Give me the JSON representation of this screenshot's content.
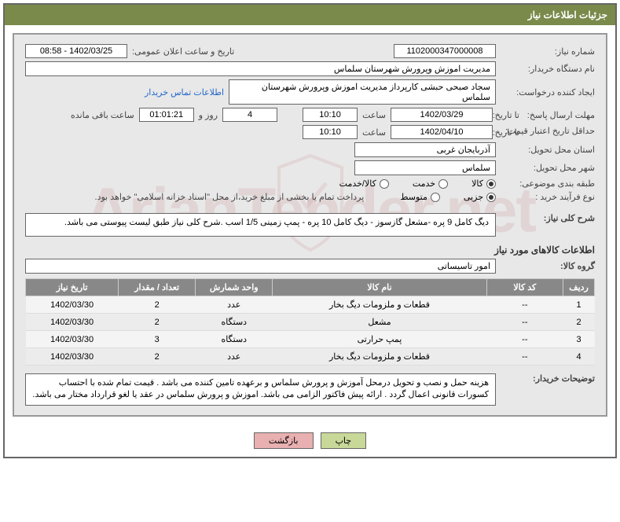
{
  "title": "جزئیات اطلاعات نیاز",
  "labels": {
    "need_no": "شماره نیاز:",
    "announce_dt": "تاریخ و ساعت اعلان عمومی:",
    "buyer_org": "نام دستگاه خریدار:",
    "requester": "ایجاد کننده درخواست:",
    "contact_link": "اطلاعات تماس خریدار",
    "response_deadline": "مهلت ارسال پاسخ:",
    "until": "تا تاریخ:",
    "time": "ساعت",
    "days_and": "روز و",
    "remaining": "ساعت باقی مانده",
    "price_validity": "حداقل تاریخ اعتبار قیمت:",
    "until2": "تا تاریخ:",
    "delivery_province": "استان محل تحویل:",
    "delivery_city": "شهر محل تحویل:",
    "subject_class": "طبقه بندی موضوعی:",
    "purchase_process": "نوع فرآیند خرید :",
    "payment_note": "پرداخت تمام یا بخشی از مبلغ خرید،از محل \"اسناد خزانه اسلامی\" خواهد بود.",
    "need_desc": "شرح کلی نیاز:",
    "goods_info_header": "اطلاعات کالاهای مورد نیاز",
    "goods_group": "گروه کالا:",
    "buyer_notes": "توضیحات خریدار:"
  },
  "values": {
    "need_no": "1102000347000008",
    "announce_dt": "1402/03/25 - 08:58",
    "buyer_org": "مدیریت اموزش وپرورش شهرستان سلماس",
    "requester": "سجاد صبحی حبشی کارپرداز مدیریت اموزش وپرورش شهرستان سلماس",
    "resp_date": "1402/03/29",
    "resp_time": "10:10",
    "days_left": "4",
    "time_left": "01:01:21",
    "price_date": "1402/04/10",
    "price_time": "10:10",
    "province": "آذربایجان غربی",
    "city": "سلماس",
    "need_desc_text": "دیگ کامل 9 پره -مشعل گازسوز - دیگ کامل  10 پره - پمپ زمینی 1/5 اسب .شرح کلی نیاز طبق لیست پیوستی می باشد.",
    "goods_group": "امور تاسیساتی",
    "buyer_notes_text": "هزینه حمل و نصب و تحویل درمحل آموزش و پرورش سلماس و برعهده تامین کننده می باشد . قیمت تمام شده با احتساب کسورات قانونی اعمال گردد . ارائه پیش فاکتور الزامی می باشد. اموزش و پرورش سلماس در عقد یا لغو قرارداد مختار می باشد."
  },
  "radios": {
    "subject": [
      {
        "label": "کالا",
        "checked": true
      },
      {
        "label": "خدمت",
        "checked": false
      },
      {
        "label": "کالا/خدمت",
        "checked": false
      }
    ],
    "process": [
      {
        "label": "جزیی",
        "checked": true
      },
      {
        "label": "متوسط",
        "checked": false
      }
    ]
  },
  "table": {
    "headers": {
      "idx": "ردیف",
      "code": "کد کالا",
      "name": "نام کالا",
      "unit": "واحد شمارش",
      "qty": "تعداد / مقدار",
      "date": "تاریخ نیاز"
    },
    "rows": [
      {
        "idx": "1",
        "code": "--",
        "name": "قطعات و ملزومات دیگ بخار",
        "unit": "عدد",
        "qty": "2",
        "date": "1402/03/30"
      },
      {
        "idx": "2",
        "code": "--",
        "name": "مشعل",
        "unit": "دستگاه",
        "qty": "2",
        "date": "1402/03/30"
      },
      {
        "idx": "3",
        "code": "--",
        "name": "پمپ حرارتی",
        "unit": "دستگاه",
        "qty": "3",
        "date": "1402/03/30"
      },
      {
        "idx": "4",
        "code": "--",
        "name": "قطعات و ملزومات دیگ بخار",
        "unit": "عدد",
        "qty": "2",
        "date": "1402/03/30"
      }
    ]
  },
  "buttons": {
    "print": "چاپ",
    "back": "بازگشت"
  },
  "watermark": "ArianTender.net",
  "colors": {
    "header_bg": "#7a8a4a",
    "content_bg": "#e8e8e8",
    "th_bg": "#888888",
    "btn_print": "#c8d898",
    "btn_back": "#e8b0b0"
  }
}
